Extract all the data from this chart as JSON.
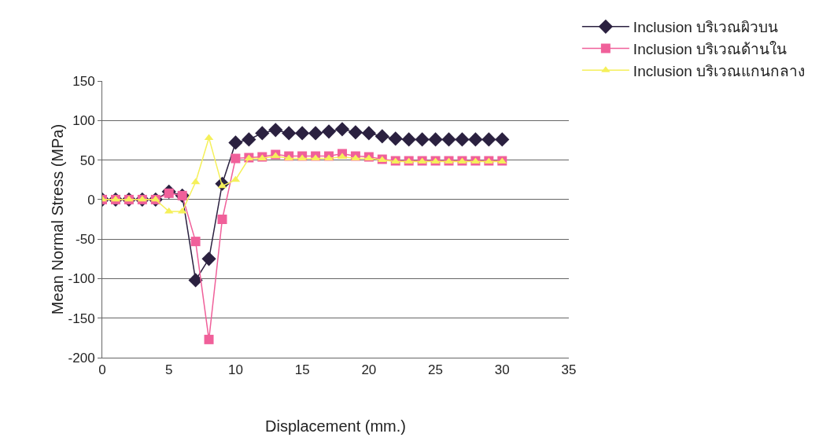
{
  "chart_data": {
    "type": "line",
    "xlabel": "Displacement (mm.)",
    "ylabel": "Mean Normal Stress (MPa)",
    "x": [
      0,
      1,
      2,
      3,
      4,
      5,
      6,
      7,
      8,
      9,
      10,
      11,
      12,
      13,
      14,
      15,
      16,
      17,
      18,
      19,
      20,
      21,
      22,
      23,
      24,
      25,
      26,
      27,
      28,
      29,
      30
    ],
    "series": [
      {
        "name": "Inclusion บริเวณผิวบน",
        "color": "#2b2140",
        "marker": "diamond",
        "values": [
          0,
          0,
          0,
          0,
          0,
          10,
          5,
          -102,
          -75,
          20,
          72,
          76,
          84,
          88,
          84,
          84,
          84,
          86,
          89,
          85,
          84,
          80,
          77,
          76,
          76,
          76,
          76,
          76,
          76,
          76,
          76
        ]
      },
      {
        "name": "Inclusion บริเวณด้านใน",
        "color": "#f0609a",
        "marker": "square",
        "values": [
          0,
          0,
          0,
          0,
          0,
          8,
          5,
          -53,
          -177,
          -25,
          52,
          53,
          54,
          57,
          55,
          55,
          55,
          55,
          58,
          55,
          54,
          51,
          49,
          49,
          49,
          49,
          49,
          49,
          49,
          49,
          49
        ]
      },
      {
        "name": "Inclusion บริเวณแกนกลาง",
        "color": "#f5f05a",
        "marker": "triangle",
        "values": [
          0,
          0,
          0,
          0,
          0,
          -15,
          -15,
          22,
          78,
          17,
          25,
          52,
          52,
          55,
          52,
          52,
          52,
          52,
          54,
          52,
          52,
          50,
          48,
          48,
          48,
          48,
          48,
          48,
          48,
          48,
          48
        ]
      }
    ],
    "xlim": [
      0,
      35
    ],
    "xticks": [
      0,
      5,
      10,
      15,
      20,
      25,
      30,
      35
    ],
    "ylim": [
      -200,
      150
    ],
    "yticks": [
      -200,
      -150,
      -100,
      -50,
      0,
      50,
      100,
      150
    ],
    "grid": "y",
    "legend": "top right"
  }
}
